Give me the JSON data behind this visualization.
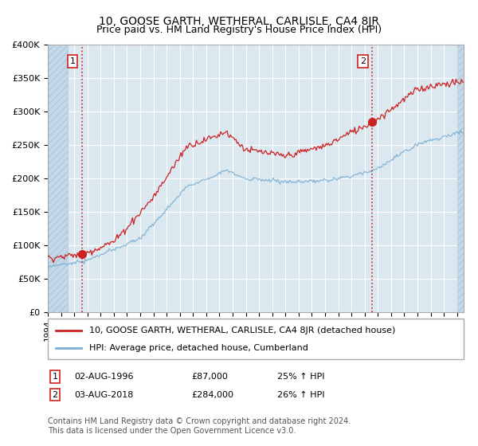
{
  "title": "10, GOOSE GARTH, WETHERAL, CARLISLE, CA4 8JR",
  "subtitle": "Price paid vs. HM Land Registry's House Price Index (HPI)",
  "ylim": [
    0,
    400000
  ],
  "yticks": [
    0,
    50000,
    100000,
    150000,
    200000,
    250000,
    300000,
    350000,
    400000
  ],
  "ytick_labels": [
    "£0",
    "£50K",
    "£100K",
    "£150K",
    "£200K",
    "£250K",
    "£300K",
    "£350K",
    "£400K"
  ],
  "xlim_start": 1994.0,
  "xlim_end": 2025.5,
  "sale1_date": 1996.58,
  "sale1_price": 87000,
  "sale2_date": 2018.58,
  "sale2_price": 284000,
  "hpi_color": "#7bafd4",
  "property_color": "#cc2222",
  "dotted_line_color": "#cc2222",
  "background_plot": "#dce8f0",
  "background_hatch_color": "#c5d8e8",
  "grid_color": "#ffffff",
  "legend_label_property": "10, GOOSE GARTH, WETHERAL, CARLISLE, CA4 8JR (detached house)",
  "legend_label_hpi": "HPI: Average price, detached house, Cumberland",
  "annotation1_date": "02-AUG-1996",
  "annotation1_price": "£87,000",
  "annotation1_hpi": "25% ↑ HPI",
  "annotation2_date": "03-AUG-2018",
  "annotation2_price": "£284,000",
  "annotation2_hpi": "26% ↑ HPI",
  "footnote": "Contains HM Land Registry data © Crown copyright and database right 2024.\nThis data is licensed under the Open Government Licence v3.0.",
  "title_fontsize": 10,
  "subtitle_fontsize": 9,
  "hatch_end": 1995.5
}
